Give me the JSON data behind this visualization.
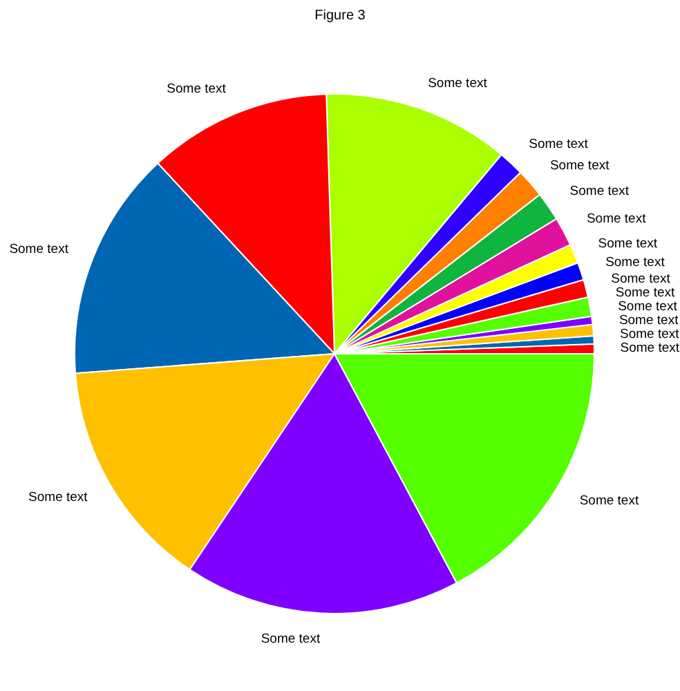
{
  "chart_data": {
    "type": "pie",
    "title": "Figure 3",
    "categories": [
      "Some text",
      "Some text",
      "Some text",
      "Some text",
      "Some text",
      "Some text",
      "Some text",
      "Some text",
      "Some text",
      "Some text",
      "Some text",
      "Some text",
      "Some text",
      "Some text",
      "Some text",
      "Some text",
      "Some text",
      "Some text"
    ],
    "values": [
      0.6,
      0.5,
      0.7,
      0.5,
      1.2,
      1.1,
      1.1,
      1.2,
      1.8,
      1.8,
      1.8,
      1.6,
      11.6,
      11.4,
      14.3,
      14.4,
      17.2,
      17.2
    ],
    "colors": [
      "#ff0000",
      "#0066b3",
      "#ffc000",
      "#8000ff",
      "#55ff00",
      "#ff0000",
      "#0000ff",
      "#ffff00",
      "#e0119d",
      "#10b540",
      "#ff7f00",
      "#2f00ff",
      "#aaff00",
      "#ff0000",
      "#0066b3",
      "#ffc000",
      "#8000ff",
      "#55ff00"
    ]
  }
}
